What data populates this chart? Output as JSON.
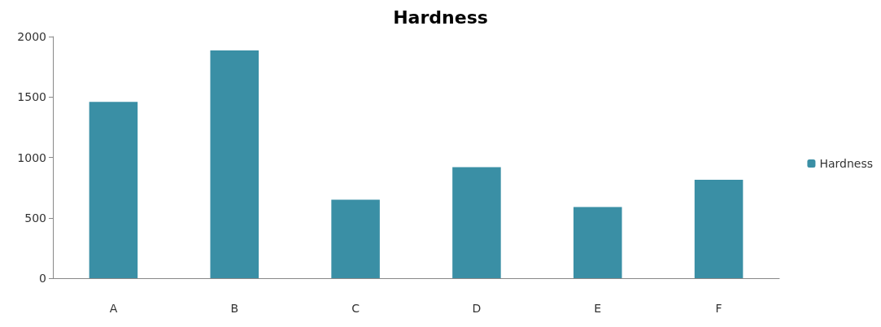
{
  "chart_data": {
    "type": "bar",
    "title": "Hardness",
    "categories": [
      "A",
      "B",
      "C",
      "D",
      "E",
      "F"
    ],
    "series": [
      {
        "name": "Hardness",
        "color": "#3a8fa5",
        "values": [
          1460,
          1885,
          650,
          920,
          590,
          815
        ]
      }
    ],
    "ylim": [
      0,
      2000
    ],
    "yticks": [
      0,
      500,
      1000,
      1500,
      2000
    ],
    "grid": false,
    "legend": "right"
  }
}
